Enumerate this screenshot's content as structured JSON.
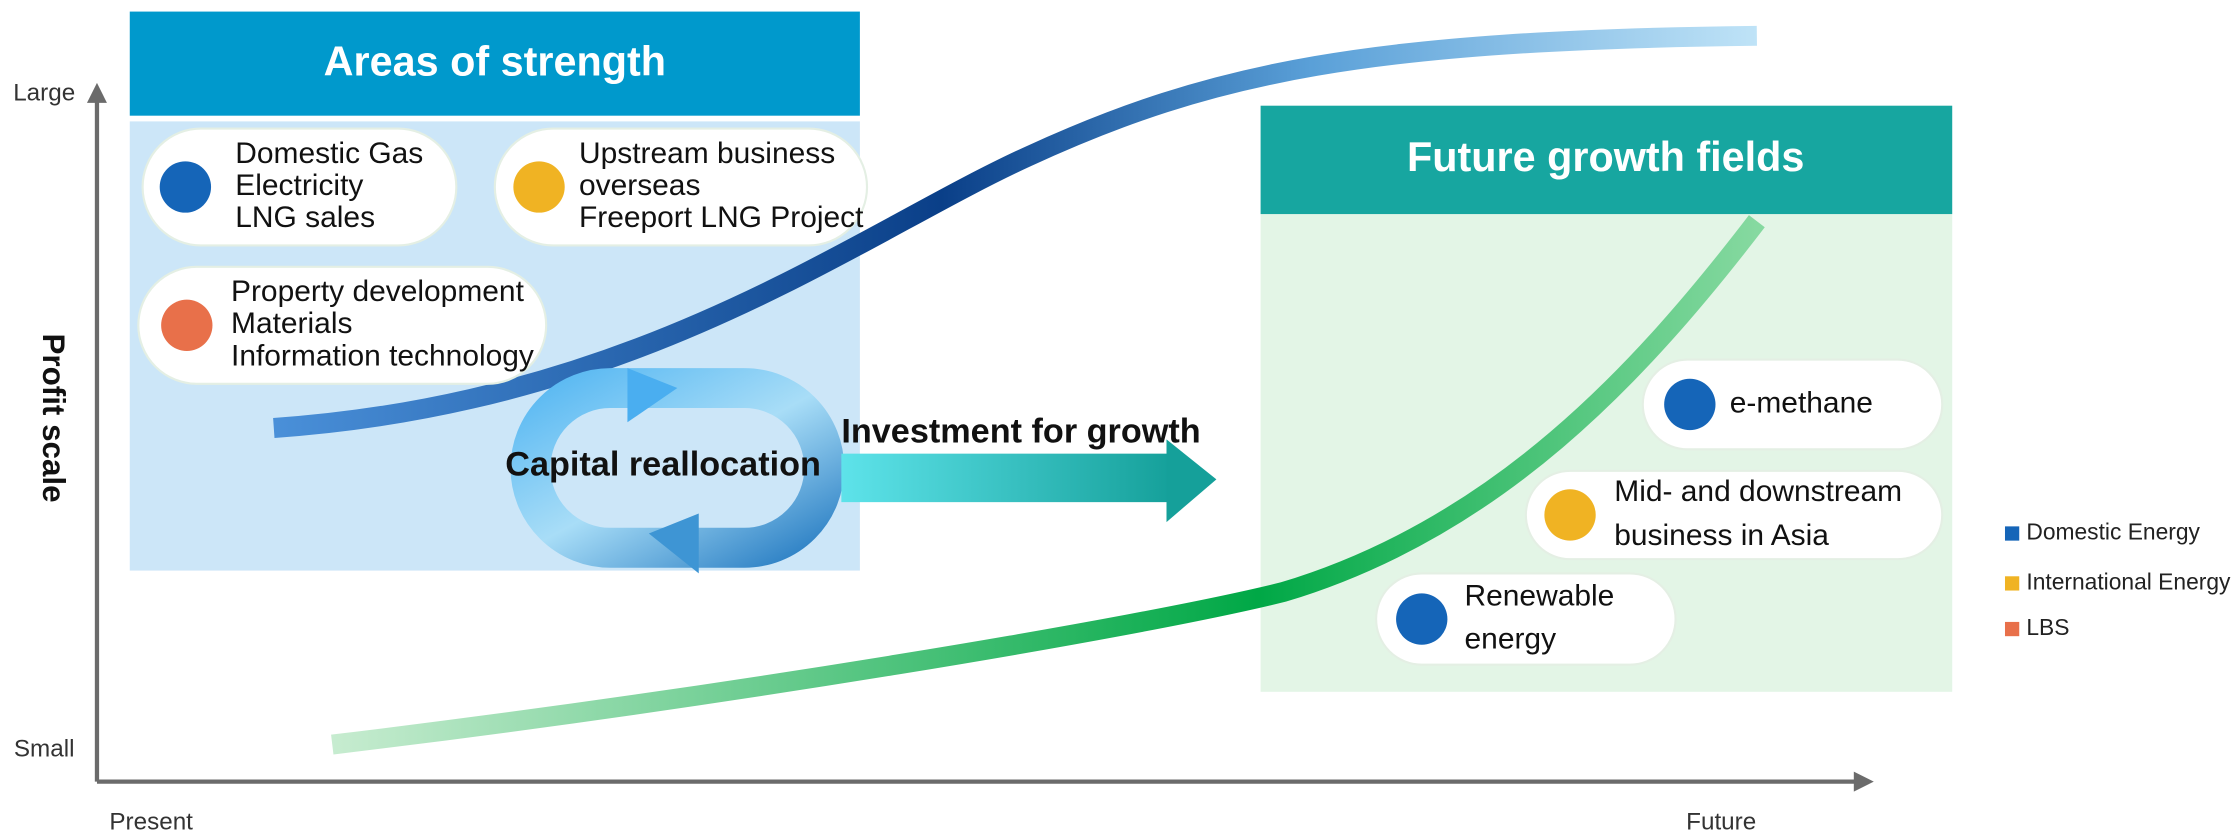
{
  "y_axis": {
    "label": "Profit scale",
    "top": "Large",
    "bottom": "Small"
  },
  "x_axis": {
    "start": "Present",
    "end": "Future"
  },
  "strength": {
    "title": "Areas of strength",
    "items": [
      {
        "lines": [
          "Domestic Gas",
          "Electricity",
          "LNG sales"
        ],
        "category": 0
      },
      {
        "lines": [
          "Upstream business",
          "overseas",
          "Freeport LNG Project"
        ],
        "category": 1
      },
      {
        "lines": [
          "Property development",
          "Materials",
          "Information technology"
        ],
        "category": 2
      }
    ]
  },
  "growth": {
    "title": "Future growth fields",
    "items": [
      {
        "lines": [
          "e-methane"
        ],
        "category": 0
      },
      {
        "lines": [
          "Mid- and downstream",
          "business in Asia"
        ],
        "category": 1
      },
      {
        "lines": [
          "Renewable",
          "energy"
        ],
        "category": 0
      }
    ]
  },
  "flows": {
    "reallocation": "Capital reallocation",
    "investment": "Investment for growth"
  },
  "legend": [
    {
      "label": "Domestic Energy",
      "color": "#1565b8"
    },
    {
      "label": "International Energy",
      "color": "#f0b323"
    },
    {
      "label": "LBS",
      "color": "#e8704a"
    }
  ]
}
